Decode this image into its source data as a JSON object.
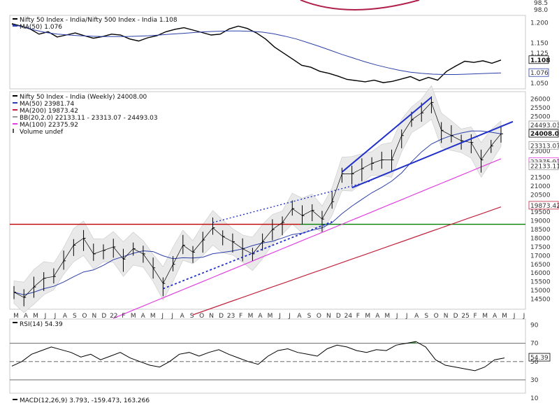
{
  "chart_data": [
    {
      "type": "line",
      "panel": "ratio",
      "series": [
        {
          "name": "Nifty 50 Index - India/Nifty 500 Index - India 1.108",
          "color": "#000000"
        },
        {
          "name": "MA(50) 1.076",
          "color": "#2b3fa8"
        }
      ],
      "y_ticks": [
        "1.200",
        "1.150",
        "1.125",
        "1.076",
        "1.050"
      ],
      "ylim": [
        1.04,
        1.215
      ],
      "last_value": "1.108",
      "values": [
        1.198,
        1.192,
        1.185,
        1.172,
        1.178,
        1.165,
        1.17,
        1.175,
        1.168,
        1.162,
        1.166,
        1.172,
        1.17,
        1.16,
        1.155,
        1.163,
        1.168,
        1.178,
        1.184,
        1.188,
        1.182,
        1.176,
        1.17,
        1.172,
        1.185,
        1.192,
        1.186,
        1.175,
        1.16,
        1.14,
        1.125,
        1.11,
        1.095,
        1.09,
        1.08,
        1.075,
        1.068,
        1.06,
        1.057,
        1.054,
        1.058,
        1.052,
        1.055,
        1.061,
        1.067,
        1.057,
        1.065,
        1.058,
        1.08,
        1.093,
        1.105,
        1.102,
        1.106,
        1.1,
        1.108
      ],
      "ma50": [
        1.196,
        1.19,
        1.182,
        1.176,
        1.172,
        1.17,
        1.168,
        1.167,
        1.166,
        1.166,
        1.166,
        1.167,
        1.168,
        1.17,
        1.172,
        1.174,
        1.176,
        1.178,
        1.179,
        1.18,
        1.18,
        1.179,
        1.177,
        1.173,
        1.167,
        1.16,
        1.151,
        1.142,
        1.132,
        1.122,
        1.113,
        1.104,
        1.096,
        1.089,
        1.083,
        1.078,
        1.075,
        1.073,
        1.072,
        1.072,
        1.073,
        1.074,
        1.075,
        1.076
      ]
    },
    {
      "type": "line",
      "panel": "price",
      "title": "Nifty 50 Index - India (Weekly) 24008.00",
      "series": [
        {
          "name": "Nifty 50 Index - India (Weekly) 24008.00",
          "color": "#000000"
        },
        {
          "name": "MA(50) 23981.74",
          "color": "#2b3fa8"
        },
        {
          "name": "MA(200) 19873.42",
          "color": "#c0253f"
        },
        {
          "name": "BB(20,2.0) 22133.11 - 23313.07 - 24493.03",
          "color": "#9a9a9a"
        },
        {
          "name": "MA(100) 22375.92",
          "color": "#e040e0"
        },
        {
          "name": "Volume undef",
          "color": "#555555"
        }
      ],
      "ylim": [
        14000,
        26300
      ],
      "y_ticks": [
        "26000",
        "25500",
        "25000",
        "24000",
        "23000",
        "21500",
        "21000",
        "20500",
        "19500",
        "19000",
        "18500",
        "18000",
        "17500",
        "17000",
        "16500",
        "16000",
        "15500",
        "15000",
        "14500"
      ],
      "value_badges": [
        "24493.03",
        "24008.00",
        "23313.07",
        "22375.92",
        "22133.11",
        "19873.42"
      ],
      "x_labels": [
        "M",
        "A",
        "M",
        "J",
        "J",
        "A",
        "S",
        "O",
        "N",
        "D",
        "22",
        "F",
        "M",
        "A",
        "M",
        "J",
        "J",
        "A",
        "S",
        "O",
        "N",
        "D",
        "23",
        "F",
        "M",
        "A",
        "M",
        "J",
        "J",
        "A",
        "S",
        "O",
        "N",
        "D",
        "24",
        "F",
        "M",
        "A",
        "M",
        "J",
        "J",
        "A",
        "S",
        "O",
        "N",
        "D",
        "25",
        "F",
        "M",
        "A",
        "M",
        "J",
        "J"
      ],
      "price": [
        {
          "date": "2021-03",
          "close": 14900
        },
        {
          "date": "2021-04",
          "close": 14600
        },
        {
          "date": "2021-05",
          "close": 15200
        },
        {
          "date": "2021-06",
          "close": 15700
        },
        {
          "date": "2021-07",
          "close": 15800
        },
        {
          "date": "2021-08",
          "close": 16700
        },
        {
          "date": "2021-09",
          "close": 17600
        },
        {
          "date": "2021-10",
          "close": 18000
        },
        {
          "date": "2021-11",
          "close": 17100
        },
        {
          "date": "2021-12",
          "close": 17300
        },
        {
          "date": "2022-01",
          "close": 17500
        },
        {
          "date": "2022-02",
          "close": 16800
        },
        {
          "date": "2022-03",
          "close": 17400
        },
        {
          "date": "2022-04",
          "close": 17100
        },
        {
          "date": "2022-05",
          "close": 16300
        },
        {
          "date": "2022-06",
          "close": 15400
        },
        {
          "date": "2022-07",
          "close": 16500
        },
        {
          "date": "2022-08",
          "close": 17600
        },
        {
          "date": "2022-09",
          "close": 17200
        },
        {
          "date": "2022-10",
          "close": 17900
        },
        {
          "date": "2022-11",
          "close": 18600
        },
        {
          "date": "2022-12",
          "close": 18100
        },
        {
          "date": "2023-01",
          "close": 17800
        },
        {
          "date": "2023-02",
          "close": 17400
        },
        {
          "date": "2023-03",
          "close": 17100
        },
        {
          "date": "2023-04",
          "close": 17800
        },
        {
          "date": "2023-05",
          "close": 18500
        },
        {
          "date": "2023-06",
          "close": 18900
        },
        {
          "date": "2023-07",
          "close": 19700
        },
        {
          "date": "2023-08",
          "close": 19300
        },
        {
          "date": "2023-09",
          "close": 19600
        },
        {
          "date": "2023-10",
          "close": 19100
        },
        {
          "date": "2023-11",
          "close": 20100
        },
        {
          "date": "2023-12",
          "close": 21700
        },
        {
          "date": "2024-01",
          "close": 21700
        },
        {
          "date": "2024-02",
          "close": 22000
        },
        {
          "date": "2024-03",
          "close": 22300
        },
        {
          "date": "2024-04",
          "close": 22500
        },
        {
          "date": "2024-05",
          "close": 22500
        },
        {
          "date": "2024-06",
          "close": 23900
        },
        {
          "date": "2024-07",
          "close": 24800
        },
        {
          "date": "2024-08",
          "close": 25200
        },
        {
          "date": "2024-09",
          "close": 25800
        },
        {
          "date": "2024-10",
          "close": 24200
        },
        {
          "date": "2024-11",
          "close": 23900
        },
        {
          "date": "2024-12",
          "close": 23600
        },
        {
          "date": "2025-01",
          "close": 23500
        },
        {
          "date": "2025-02",
          "close": 22500
        },
        {
          "date": "2025-03",
          "close": 23300
        },
        {
          "date": "2025-04",
          "close": 24000
        }
      ],
      "horizontal_lines": [
        {
          "color": "#c00000"
        },
        {
          "color": "#008000"
        }
      ]
    },
    {
      "type": "line",
      "panel": "rsi",
      "series": [
        {
          "name": "RSI(14) 54.39",
          "color": "#000000"
        }
      ],
      "ylim": [
        20,
        95
      ],
      "y_ticks": [
        "90",
        "70",
        "54.39",
        "50",
        "30",
        "10"
      ],
      "values": [
        45,
        50,
        58,
        62,
        66,
        63,
        60,
        55,
        58,
        52,
        56,
        60,
        54,
        50,
        46,
        44,
        50,
        58,
        60,
        56,
        60,
        63,
        58,
        54,
        50,
        47,
        56,
        62,
        64,
        60,
        58,
        56,
        64,
        68,
        66,
        62,
        60,
        63,
        62,
        68,
        70,
        72,
        66,
        52,
        46,
        44,
        42,
        40,
        44,
        52,
        54
      ]
    },
    {
      "type": "line",
      "panel": "macd",
      "title": "MACD(12,26,9) 3.793, -159.473, 163.266"
    }
  ]
}
